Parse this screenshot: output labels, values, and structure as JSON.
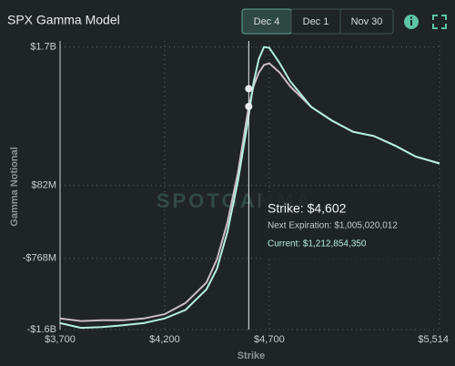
{
  "chart_data": {
    "type": "line",
    "title": "SPX Gamma Model",
    "tabs": [
      "Dec 4",
      "Dec 1",
      "Nov 30"
    ],
    "active_tab": 0,
    "watermark": "SPOTGAMMA",
    "xlabel": "Strike",
    "ylabel": "Gamma Notional",
    "x": [
      3700,
      3800,
      3900,
      4000,
      4100,
      4200,
      4300,
      4400,
      4450,
      4500,
      4550,
      4600,
      4625,
      4650,
      4675,
      4700,
      4750,
      4800,
      4900,
      5000,
      5100,
      5200,
      5300,
      5400,
      5514
    ],
    "series": [
      {
        "name": "Next Expiration",
        "color": "#cbbcc4",
        "values": [
          -1470000000,
          -1500000000,
          -1490000000,
          -1490000000,
          -1470000000,
          -1420000000,
          -1290000000,
          -1050000000,
          -780000000,
          -350000000,
          230000000,
          980000000,
          1240000000,
          1400000000,
          1490000000,
          1510000000,
          1400000000,
          1240000000,
          1000000000,
          840000000,
          710000000,
          660000000,
          550000000,
          420000000,
          340000000
        ]
      },
      {
        "name": "Current",
        "color": "#b4f0dc",
        "values": [
          -1525000000,
          -1580000000,
          -1570000000,
          -1550000000,
          -1525000000,
          -1470000000,
          -1370000000,
          -1130000000,
          -890000000,
          -460000000,
          130000000,
          870000000,
          1280000000,
          1560000000,
          1700000000,
          1690000000,
          1510000000,
          1300000000,
          1000000000,
          840000000,
          710000000,
          660000000,
          550000000,
          420000000,
          340000000
        ]
      }
    ],
    "xlim": [
      3700,
      5514
    ],
    "ylim": [
      -1600000000,
      1770000000
    ],
    "xticks": [
      {
        "value": 3700,
        "label": "$3,700"
      },
      {
        "value": 4200,
        "label": "$4,200"
      },
      {
        "value": 4700,
        "label": "$4,700"
      },
      {
        "value": 5514,
        "label": "$5,514"
      }
    ],
    "yticks": [
      {
        "value": 1700000000,
        "label": "$1.7B"
      },
      {
        "value": 82000000,
        "label": "$82M"
      },
      {
        "value": -768000000,
        "label": "-$768M"
      },
      {
        "value": -1600000000,
        "label": "-$1.6B"
      }
    ],
    "grid": true,
    "tooltip": {
      "strike": {
        "value": 4602,
        "label": "Strike: $4,602"
      },
      "next": {
        "value": 1005020012,
        "label": "Next Expiration: $1,005,020,012"
      },
      "current": {
        "value": 1212854350,
        "label": "Current: $1,212,854,350"
      }
    }
  }
}
